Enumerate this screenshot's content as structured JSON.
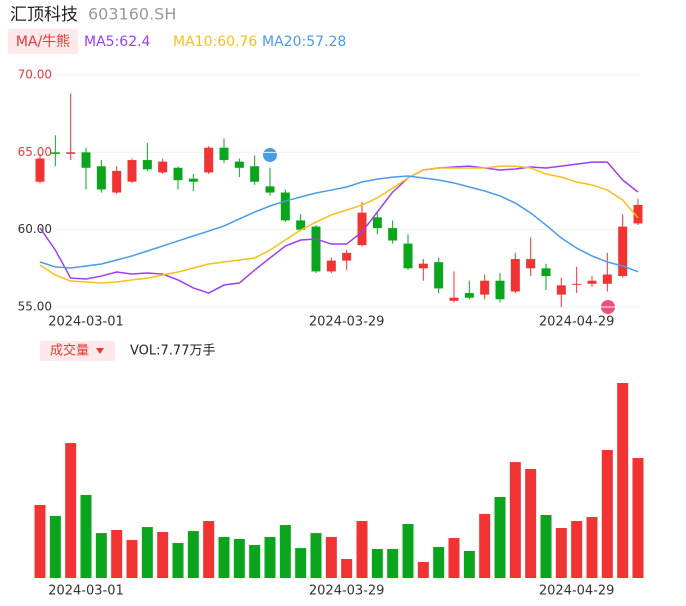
{
  "header": {
    "name": "汇顶科技",
    "code": "603160.SH",
    "ma_button": "MA/牛熊",
    "vol_button": "成交量",
    "vol_label": "VOL:7.77万手"
  },
  "chart_data": [
    {
      "type": "candlestick",
      "categories": [
        null,
        null,
        null,
        "2024-03-01",
        null,
        null,
        null,
        null,
        null,
        null,
        null,
        null,
        null,
        null,
        null,
        null,
        null,
        null,
        null,
        null,
        "2024-03-29",
        null,
        null,
        null,
        null,
        null,
        null,
        null,
        null,
        null,
        null,
        null,
        null,
        null,
        null,
        "2024-04-29",
        null,
        null,
        null,
        null
      ],
      "open": [
        63.1,
        65.0,
        64.9,
        65.0,
        64.1,
        62.4,
        63.1,
        64.5,
        63.7,
        64.0,
        63.3,
        63.7,
        65.3,
        64.4,
        64.1,
        62.8,
        62.4,
        60.6,
        60.2,
        57.3,
        58.0,
        59.0,
        60.8,
        60.1,
        59.1,
        57.5,
        57.9,
        55.4,
        55.9,
        55.8,
        56.7,
        56.0,
        57.5,
        57.5,
        55.8,
        56.45,
        56.5,
        56.5,
        57.0,
        60.4
      ],
      "close": [
        64.6,
        64.9,
        65.0,
        64.0,
        62.6,
        63.8,
        64.5,
        63.9,
        64.4,
        63.2,
        63.1,
        65.3,
        64.5,
        64.0,
        63.1,
        62.4,
        60.6,
        60.0,
        57.3,
        58.0,
        58.5,
        61.1,
        60.1,
        59.3,
        57.5,
        57.8,
        56.2,
        55.6,
        55.6,
        56.7,
        55.5,
        58.1,
        58.1,
        57.0,
        56.4,
        56.5,
        56.7,
        57.1,
        60.2,
        61.6
      ],
      "high": [
        64.9,
        66.1,
        68.8,
        65.3,
        64.5,
        64.1,
        64.6,
        65.6,
        64.6,
        64.1,
        63.6,
        65.4,
        65.9,
        64.6,
        64.8,
        64.0,
        62.6,
        61.0,
        60.3,
        58.2,
        58.7,
        61.8,
        61.1,
        60.6,
        59.7,
        58.1,
        58.2,
        57.3,
        56.7,
        57.1,
        57.2,
        58.5,
        59.5,
        57.8,
        56.9,
        57.6,
        57.0,
        58.5,
        61.0,
        62.0
      ],
      "low": [
        63.0,
        64.1,
        64.5,
        62.6,
        62.4,
        62.3,
        63.0,
        63.8,
        63.6,
        62.6,
        62.5,
        63.6,
        64.3,
        63.4,
        62.9,
        62.2,
        60.5,
        59.9,
        57.2,
        57.2,
        57.4,
        58.9,
        59.7,
        59.1,
        57.4,
        56.7,
        55.9,
        55.3,
        55.5,
        55.5,
        55.3,
        55.9,
        57.0,
        56.1,
        55.0,
        55.9,
        56.3,
        56.0,
        56.9,
        60.3
      ],
      "up_color": "#f03434",
      "down_color": "#0aa51d",
      "series": [
        {
          "name": "MA5:62.4",
          "color": "#9b3ff0",
          "values": [
            60.11,
            58.68,
            56.87,
            56.81,
            57.0,
            57.26,
            57.13,
            57.2,
            57.13,
            56.75,
            56.23,
            55.9,
            56.42,
            56.55,
            57.39,
            58.17,
            58.94,
            59.33,
            59.4,
            59.07,
            59.07,
            59.85,
            61.14,
            62.43,
            63.34,
            63.86,
            63.99,
            64.05,
            64.11,
            63.99,
            63.86,
            63.92,
            64.05,
            63.99,
            64.11,
            64.24,
            64.37,
            64.37,
            63.21,
            62.43
          ]
        },
        {
          "name": "MA10:60.76",
          "color": "#f5c01c",
          "values": [
            57.71,
            57.07,
            56.68,
            56.62,
            56.55,
            56.62,
            56.75,
            56.87,
            57.07,
            57.26,
            57.52,
            57.78,
            57.91,
            58.04,
            58.17,
            58.68,
            59.33,
            59.98,
            60.49,
            60.95,
            61.27,
            61.59,
            62.05,
            62.69,
            63.34,
            63.86,
            63.99,
            63.99,
            63.99,
            63.99,
            64.11,
            64.11,
            63.99,
            63.6,
            63.4,
            63.08,
            62.89,
            62.56,
            61.92,
            60.76
          ]
        },
        {
          "name": "MA20:57.28",
          "color": "#4a9be8",
          "values": [
            57.91,
            57.59,
            57.52,
            57.65,
            57.78,
            58.04,
            58.3,
            58.62,
            58.94,
            59.27,
            59.59,
            59.91,
            60.24,
            60.69,
            61.14,
            61.53,
            61.85,
            62.11,
            62.37,
            62.56,
            62.76,
            63.08,
            63.27,
            63.4,
            63.47,
            63.34,
            63.21,
            63.02,
            62.76,
            62.5,
            62.18,
            61.72,
            61.08,
            60.3,
            59.46,
            58.81,
            58.3,
            57.91,
            57.65,
            57.28
          ]
        }
      ],
      "ylim": [
        55,
        70
      ],
      "yticks": [
        {
          "value": 55,
          "label": "55.00"
        },
        {
          "value": 60,
          "label": "60.00"
        },
        {
          "value": 65,
          "label": "65.00"
        },
        {
          "value": 70,
          "label": "70.00"
        }
      ],
      "ytick_colors": [
        "#333333",
        "#333333",
        "#e33b3b",
        "#e33b3b"
      ],
      "grid": true
    },
    {
      "type": "volume",
      "values": [
        4.73,
        4.02,
        8.74,
        5.38,
        2.91,
        3.11,
        2.46,
        3.3,
        2.98,
        2.27,
        3.04,
        3.69,
        2.66,
        2.53,
        2.14,
        2.66,
        3.43,
        1.94,
        2.91,
        2.66,
        1.23,
        3.69,
        1.88,
        1.88,
        3.5,
        1.04,
        2.01,
        2.59,
        1.75,
        4.15,
        5.25,
        7.51,
        7.06,
        4.08,
        3.24,
        3.69,
        3.95,
        8.29,
        12.63,
        7.77
      ]
    }
  ]
}
